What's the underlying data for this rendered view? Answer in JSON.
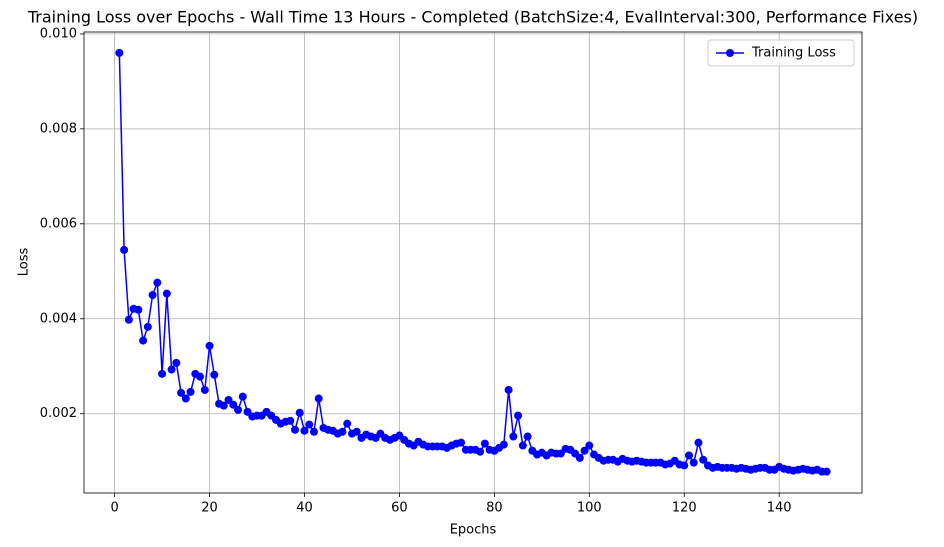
{
  "chart_data": {
    "type": "line",
    "title": "Training Loss over Epochs - Wall Time 13 Hours - Completed (BatchSize:4, EvalInterval:300, Performance Fixes)",
    "xlabel": "Epochs",
    "ylabel": "Loss",
    "x": [
      1,
      2,
      3,
      4,
      5,
      6,
      7,
      8,
      9,
      10,
      11,
      12,
      13,
      14,
      15,
      16,
      17,
      18,
      19,
      20,
      21,
      22,
      23,
      24,
      25,
      26,
      27,
      28,
      29,
      30,
      31,
      32,
      33,
      34,
      35,
      36,
      37,
      38,
      39,
      40,
      41,
      42,
      43,
      44,
      45,
      46,
      47,
      48,
      49,
      50,
      51,
      52,
      53,
      54,
      55,
      56,
      57,
      58,
      59,
      60,
      61,
      62,
      63,
      64,
      65,
      66,
      67,
      68,
      69,
      70,
      71,
      72,
      73,
      74,
      75,
      76,
      77,
      78,
      79,
      80,
      81,
      82,
      83,
      84,
      85,
      86,
      87,
      88,
      89,
      90,
      91,
      92,
      93,
      94,
      95,
      96,
      97,
      98,
      99,
      100,
      101,
      102,
      103,
      104,
      105,
      106,
      107,
      108,
      109,
      110,
      111,
      112,
      113,
      114,
      115,
      116,
      117,
      118,
      119,
      120,
      121,
      122,
      123,
      124,
      125,
      126,
      127,
      128,
      129,
      130,
      131,
      132,
      133,
      134,
      135,
      136,
      137,
      138,
      139,
      140,
      141,
      142,
      143,
      144,
      145,
      146,
      147,
      148,
      149,
      150
    ],
    "series": [
      {
        "name": "Training Loss",
        "color": "#0000ff",
        "values": [
          0.0096,
          0.00545,
          0.00398,
          0.00421,
          0.00419,
          0.00354,
          0.00383,
          0.0045,
          0.00476,
          0.00284,
          0.00453,
          0.00293,
          0.00307,
          0.00244,
          0.00232,
          0.00246,
          0.00284,
          0.00278,
          0.0025,
          0.00343,
          0.00282,
          0.00221,
          0.00217,
          0.00229,
          0.00219,
          0.00208,
          0.00236,
          0.00204,
          0.00194,
          0.00196,
          0.00196,
          0.00204,
          0.00196,
          0.00187,
          0.00179,
          0.00183,
          0.00185,
          0.00166,
          0.00202,
          0.00164,
          0.00177,
          0.00162,
          0.00232,
          0.0017,
          0.00166,
          0.00164,
          0.00158,
          0.00162,
          0.00179,
          0.00158,
          0.00162,
          0.00149,
          0.00156,
          0.00152,
          0.00149,
          0.00158,
          0.00149,
          0.00145,
          0.00149,
          0.00154,
          0.00145,
          0.00137,
          0.00133,
          0.00141,
          0.00135,
          0.00131,
          0.00131,
          0.00131,
          0.00131,
          0.00128,
          0.00133,
          0.00137,
          0.00139,
          0.00124,
          0.00124,
          0.00124,
          0.0012,
          0.00137,
          0.00124,
          0.00122,
          0.00128,
          0.00135,
          0.0025,
          0.00152,
          0.00196,
          0.00133,
          0.00152,
          0.00122,
          0.00114,
          0.00118,
          0.00112,
          0.00118,
          0.00116,
          0.00116,
          0.00126,
          0.00124,
          0.00116,
          0.00107,
          0.00122,
          0.00133,
          0.00114,
          0.00107,
          0.00101,
          0.00103,
          0.00103,
          0.00099,
          0.00105,
          0.00101,
          0.00099,
          0.00101,
          0.00099,
          0.00097,
          0.00097,
          0.00097,
          0.00097,
          0.00093,
          0.00095,
          0.00101,
          0.00093,
          0.00091,
          0.00112,
          0.00097,
          0.00139,
          0.00103,
          0.00091,
          0.00086,
          0.00088,
          0.00086,
          0.00086,
          0.00086,
          0.00084,
          0.00086,
          0.00084,
          0.00082,
          0.00084,
          0.00086,
          0.00086,
          0.00082,
          0.00082,
          0.00088,
          0.00084,
          0.00082,
          0.0008,
          0.00082,
          0.00084,
          0.00082,
          0.0008,
          0.00082,
          0.00078,
          0.00078
        ]
      }
    ],
    "xlim": [
      -6.45,
      157.45
    ],
    "xticks": [
      0,
      20,
      40,
      60,
      80,
      100,
      120,
      140
    ],
    "ylim": [
      0.00033,
      0.01004
    ],
    "yticks": [
      0.002,
      0.004,
      0.006,
      0.008,
      {
        "value": 0.01,
        "label": "0.010"
      }
    ],
    "grid": true,
    "legend": "upper right"
  }
}
